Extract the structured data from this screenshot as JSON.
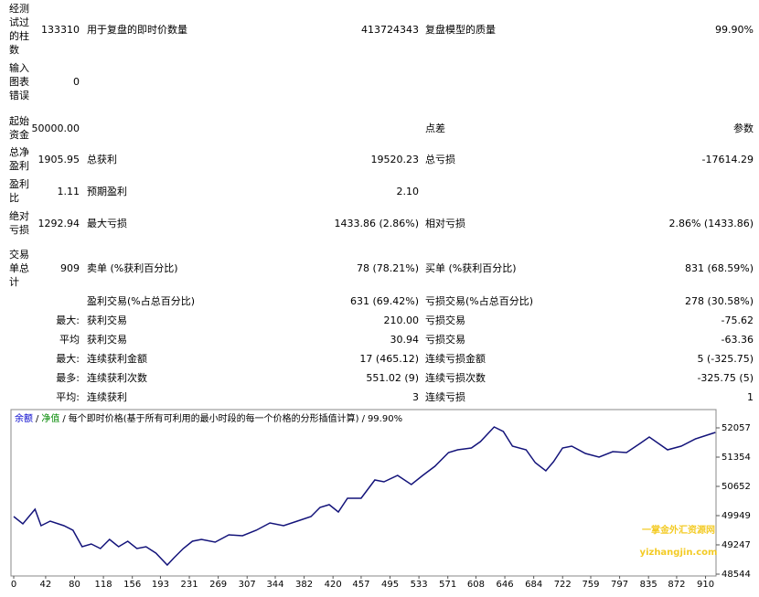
{
  "report": {
    "rows": [
      [
        "经测试过的柱数",
        "133310",
        "用于复盘的即时价数量",
        "413724343",
        "复盘模型的质量",
        "99.90%"
      ],
      [
        "输入图表错误",
        "0",
        null,
        null,
        null,
        null
      ],
      [
        "起始资金",
        "50000.00",
        null,
        null,
        "点差",
        "参数"
      ],
      [
        "总净盈利",
        "1905.95",
        "总获利",
        "19520.23",
        "总亏损",
        "-17614.29"
      ],
      [
        "盈利比",
        "1.11",
        "预期盈利",
        "2.10",
        null,
        null
      ],
      [
        "绝对亏损",
        "1292.94",
        "最大亏损",
        "1433.86 (2.86%)",
        "相对亏损",
        "2.86% (1433.86)"
      ],
      [
        "交易单总计",
        "909",
        "卖单 (%获利百分比)",
        "78 (78.21%)",
        "买单 (%获利百分比)",
        "831 (68.59%)"
      ],
      [
        null,
        null,
        "盈利交易(%占总百分比)",
        "631 (69.42%)",
        "亏损交易(%占总百分比)",
        "278 (30.58%)"
      ],
      [
        null,
        "最大:",
        "获利交易",
        "210.00",
        "亏损交易",
        "-75.62"
      ],
      [
        null,
        "平均",
        "获利交易",
        "30.94",
        "亏损交易",
        "-63.36"
      ],
      [
        null,
        "最大:",
        "连续获利金额",
        "17 (465.12)",
        "连续亏损金额",
        "5 (-325.75)"
      ],
      [
        null,
        "最多:",
        "连续获利次数",
        "551.02 (9)",
        "连续亏损次数",
        "-325.75 (5)"
      ],
      [
        null,
        "平均:",
        "连续获利",
        "3",
        "连续亏损",
        "1"
      ]
    ]
  },
  "chart_data": {
    "type": "line",
    "legend_items": [
      {
        "text": "余额",
        "color": "#0000cc"
      },
      {
        "text": "净值",
        "color": "#008800"
      },
      {
        "text": "每个即时价格(基于所有可利用的最小时段的每一个价格的分形插值计算)",
        "color": "#000000"
      },
      {
        "text": "99.90%",
        "color": "#000000"
      }
    ],
    "legend_separator": "/",
    "x": [
      0,
      12,
      28,
      36,
      48,
      66,
      78,
      90,
      102,
      114,
      126,
      138,
      150,
      162,
      174,
      187,
      202,
      211,
      223,
      235,
      247,
      265,
      283,
      301,
      319,
      337,
      355,
      373,
      391,
      403,
      415,
      427,
      439,
      457,
      475,
      487,
      505,
      523,
      538,
      554,
      572,
      584,
      602,
      614,
      632,
      644,
      656,
      674,
      686,
      700,
      710,
      722,
      734,
      752,
      770,
      788,
      806,
      824,
      836,
      848,
      860,
      878,
      897,
      915,
      923
    ],
    "series": [
      {
        "name": "余额",
        "color": "#13137a",
        "values": [
          49927,
          49751,
          50102,
          49707,
          49817,
          49707,
          49598,
          49203,
          49268,
          49159,
          49378,
          49203,
          49334,
          49159,
          49203,
          49049,
          48764,
          48939,
          49159,
          49334,
          49378,
          49312,
          49488,
          49466,
          49598,
          49773,
          49707,
          49817,
          49927,
          50146,
          50212,
          50037,
          50366,
          50366,
          50805,
          50761,
          50915,
          50695,
          50915,
          51134,
          51463,
          51529,
          51573,
          51727,
          52078,
          51968,
          51617,
          51529,
          51222,
          51024,
          51244,
          51573,
          51617,
          51441,
          51354,
          51485,
          51463,
          51683,
          51837,
          51683,
          51529,
          51617,
          51793,
          51902,
          51946
        ]
      }
    ],
    "xlim": [
      0,
      925
    ],
    "xticks": [
      0,
      42,
      80,
      118,
      156,
      193,
      231,
      269,
      307,
      344,
      382,
      420,
      457,
      495,
      533,
      571,
      608,
      646,
      684,
      722,
      759,
      797,
      835,
      872,
      910
    ],
    "ylim": [
      48544,
      52452
    ],
    "yticks": [
      48544,
      49247,
      49949,
      50652,
      51354,
      52057
    ],
    "watermark": [
      "一掌金外汇资源网",
      "yizhangjin.com"
    ]
  }
}
